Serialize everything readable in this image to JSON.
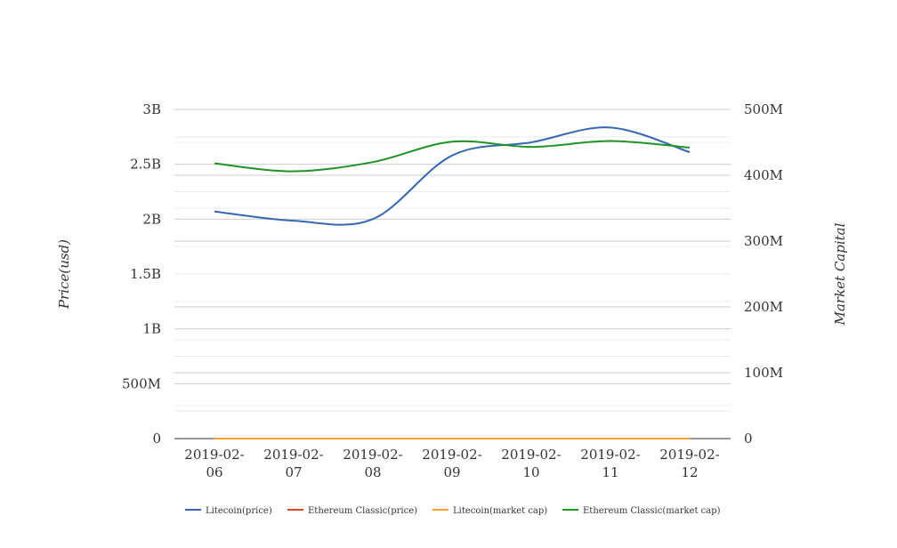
{
  "chart_data": {
    "type": "line",
    "title": "",
    "categories": [
      "2019-02-06",
      "2019-02-07",
      "2019-02-08",
      "2019-02-09",
      "2019-02-10",
      "2019-02-11",
      "2019-02-12"
    ],
    "category_labels": [
      [
        "2019-02-",
        "06"
      ],
      [
        "2019-02-",
        "07"
      ],
      [
        "2019-02-",
        "08"
      ],
      [
        "2019-02-",
        "09"
      ],
      [
        "2019-02-",
        "10"
      ],
      [
        "2019-02-",
        "11"
      ],
      [
        "2019-02-",
        "12"
      ]
    ],
    "ylabel_left": "Price(usd)",
    "ylabel_right": "Market Capital",
    "ylim_left": [
      0,
      3000000000
    ],
    "ylim_right": [
      0,
      500000000
    ],
    "yticks_left": [
      {
        "value": 0,
        "label": "0"
      },
      {
        "value": 500000000,
        "label": "500M"
      },
      {
        "value": 1000000000,
        "label": "1B"
      },
      {
        "value": 1500000000,
        "label": "1.5B"
      },
      {
        "value": 2000000000,
        "label": "2B"
      },
      {
        "value": 2500000000,
        "label": "2.5B"
      },
      {
        "value": 3000000000,
        "label": "3B"
      }
    ],
    "yticks_right": [
      {
        "value": 0,
        "label": "0"
      },
      {
        "value": 100000000,
        "label": "100M"
      },
      {
        "value": 200000000,
        "label": "200M"
      },
      {
        "value": 300000000,
        "label": "300M"
      },
      {
        "value": 400000000,
        "label": "400M"
      },
      {
        "value": 500000000,
        "label": "500M"
      }
    ],
    "grid": true,
    "legend_position": "bottom",
    "series": [
      {
        "name": "Litecoin(price)",
        "axis": "left",
        "color": "#3566b5",
        "values": [
          2070000000,
          1985000000,
          2000000000,
          2580000000,
          2700000000,
          2835000000,
          2610000000
        ]
      },
      {
        "name": "Ethereum Classic(price)",
        "axis": "left",
        "color": "#d9472b",
        "values": [
          0,
          0,
          0,
          0,
          0,
          0,
          0
        ]
      },
      {
        "name": "Litecoin(market cap)",
        "axis": "right",
        "color": "#f2a227",
        "values": [
          0,
          0,
          0,
          0,
          0,
          0,
          0
        ]
      },
      {
        "name": "Ethereum Classic(market cap)",
        "axis": "right",
        "color": "#1f9425",
        "values": [
          418000000,
          406000000,
          420000000,
          451000000,
          443000000,
          452000000,
          442000000
        ]
      }
    ]
  }
}
